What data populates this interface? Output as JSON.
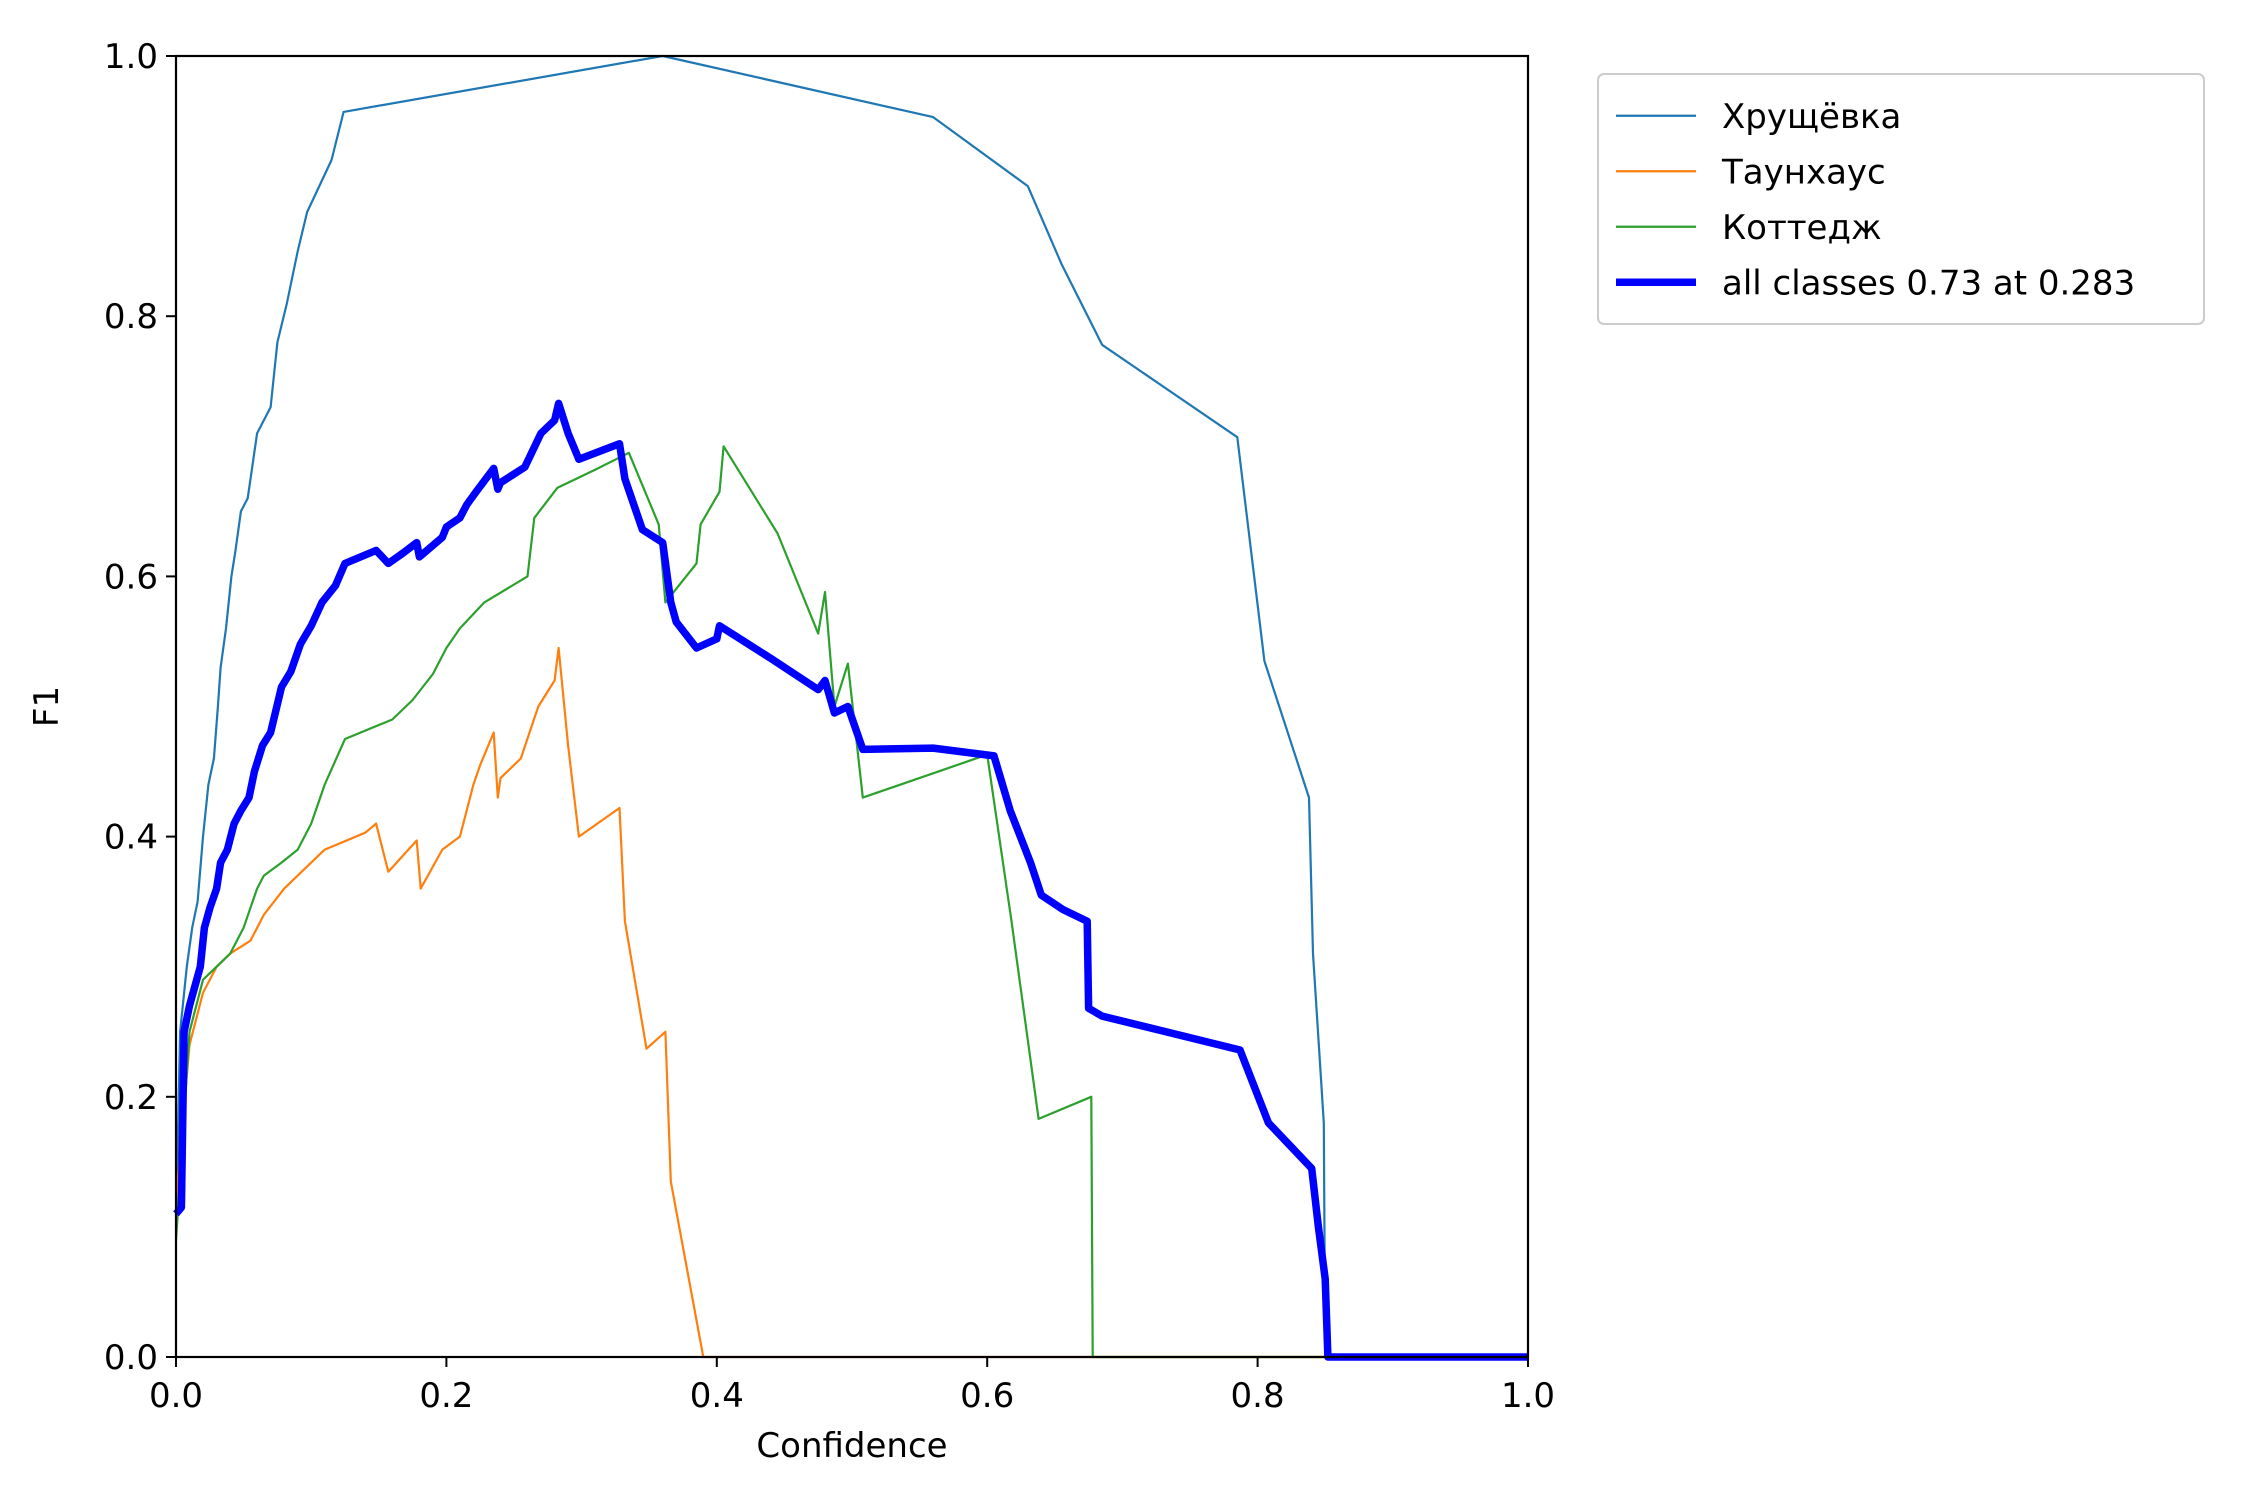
{
  "chart_data": {
    "type": "line",
    "title": "",
    "xlabel": "Confidence",
    "ylabel": "F1",
    "xlim": [
      0,
      1
    ],
    "ylim": [
      0,
      1
    ],
    "x_ticks": [
      "0.0",
      "0.2",
      "0.4",
      "0.6",
      "0.8",
      "1.0"
    ],
    "y_ticks": [
      "0.0",
      "0.2",
      "0.4",
      "0.6",
      "0.8",
      "1.0"
    ],
    "grid": false,
    "legend_position": "outside-top-right",
    "series": [
      {
        "name": "Хрущёвка",
        "color": "#1f77b4",
        "emphasis": false,
        "points": [
          [
            0.0,
            0.1
          ],
          [
            0.003,
            0.25
          ],
          [
            0.008,
            0.3
          ],
          [
            0.012,
            0.33
          ],
          [
            0.016,
            0.35
          ],
          [
            0.02,
            0.4
          ],
          [
            0.024,
            0.44
          ],
          [
            0.028,
            0.46
          ],
          [
            0.031,
            0.5
          ],
          [
            0.033,
            0.53
          ],
          [
            0.037,
            0.56
          ],
          [
            0.041,
            0.6
          ],
          [
            0.044,
            0.62
          ],
          [
            0.048,
            0.65
          ],
          [
            0.053,
            0.66
          ],
          [
            0.06,
            0.71
          ],
          [
            0.07,
            0.73
          ],
          [
            0.075,
            0.78
          ],
          [
            0.082,
            0.81
          ],
          [
            0.09,
            0.85
          ],
          [
            0.097,
            0.88
          ],
          [
            0.115,
            0.92
          ],
          [
            0.124,
            0.957
          ],
          [
            0.36,
            1.0
          ],
          [
            0.56,
            0.953
          ],
          [
            0.63,
            0.9
          ],
          [
            0.655,
            0.84
          ],
          [
            0.685,
            0.778
          ],
          [
            0.785,
            0.707
          ],
          [
            0.805,
            0.535
          ],
          [
            0.838,
            0.43
          ],
          [
            0.841,
            0.31
          ],
          [
            0.849,
            0.18
          ],
          [
            0.85,
            0.0
          ],
          [
            1.0,
            0.0
          ]
        ]
      },
      {
        "name": "Таунхаус",
        "color": "#ff7f0e",
        "emphasis": false,
        "points": [
          [
            0.0,
            0.12
          ],
          [
            0.01,
            0.24
          ],
          [
            0.02,
            0.28
          ],
          [
            0.03,
            0.3
          ],
          [
            0.04,
            0.31
          ],
          [
            0.055,
            0.32
          ],
          [
            0.065,
            0.34
          ],
          [
            0.08,
            0.36
          ],
          [
            0.09,
            0.37
          ],
          [
            0.1,
            0.38
          ],
          [
            0.11,
            0.39
          ],
          [
            0.14,
            0.403
          ],
          [
            0.148,
            0.41
          ],
          [
            0.157,
            0.373
          ],
          [
            0.178,
            0.397
          ],
          [
            0.181,
            0.36
          ],
          [
            0.197,
            0.39
          ],
          [
            0.21,
            0.4
          ],
          [
            0.22,
            0.44
          ],
          [
            0.225,
            0.455
          ],
          [
            0.235,
            0.48
          ],
          [
            0.238,
            0.43
          ],
          [
            0.24,
            0.445
          ],
          [
            0.255,
            0.46
          ],
          [
            0.268,
            0.5
          ],
          [
            0.28,
            0.52
          ],
          [
            0.283,
            0.545
          ],
          [
            0.29,
            0.47
          ],
          [
            0.298,
            0.4
          ],
          [
            0.328,
            0.422
          ],
          [
            0.332,
            0.335
          ],
          [
            0.348,
            0.237
          ],
          [
            0.362,
            0.25
          ],
          [
            0.366,
            0.135
          ],
          [
            0.39,
            0.0
          ],
          [
            1.0,
            0.0
          ]
        ]
      },
      {
        "name": "Коттедж",
        "color": "#2ca02c",
        "emphasis": false,
        "points": [
          [
            0.0,
            0.09
          ],
          [
            0.01,
            0.25
          ],
          [
            0.02,
            0.29
          ],
          [
            0.03,
            0.3
          ],
          [
            0.04,
            0.31
          ],
          [
            0.05,
            0.33
          ],
          [
            0.06,
            0.36
          ],
          [
            0.065,
            0.37
          ],
          [
            0.078,
            0.38
          ],
          [
            0.09,
            0.39
          ],
          [
            0.1,
            0.41
          ],
          [
            0.11,
            0.44
          ],
          [
            0.125,
            0.475
          ],
          [
            0.16,
            0.49
          ],
          [
            0.175,
            0.505
          ],
          [
            0.19,
            0.525
          ],
          [
            0.2,
            0.545
          ],
          [
            0.21,
            0.56
          ],
          [
            0.228,
            0.58
          ],
          [
            0.26,
            0.6
          ],
          [
            0.265,
            0.645
          ],
          [
            0.282,
            0.668
          ],
          [
            0.31,
            0.682
          ],
          [
            0.335,
            0.695
          ],
          [
            0.357,
            0.64
          ],
          [
            0.362,
            0.58
          ],
          [
            0.385,
            0.61
          ],
          [
            0.388,
            0.64
          ],
          [
            0.402,
            0.665
          ],
          [
            0.405,
            0.7
          ],
          [
            0.445,
            0.633
          ],
          [
            0.475,
            0.556
          ],
          [
            0.48,
            0.588
          ],
          [
            0.487,
            0.5
          ],
          [
            0.497,
            0.533
          ],
          [
            0.508,
            0.43
          ],
          [
            0.6,
            0.463
          ],
          [
            0.618,
            0.335
          ],
          [
            0.638,
            0.183
          ],
          [
            0.677,
            0.2
          ],
          [
            0.678,
            0.0
          ],
          [
            1.0,
            0.0
          ]
        ]
      },
      {
        "name": "all classes 0.73 at 0.283",
        "color": "#0000ff",
        "emphasis": true,
        "points": [
          [
            0.0,
            0.11
          ],
          [
            0.004,
            0.115
          ],
          [
            0.006,
            0.25
          ],
          [
            0.01,
            0.27
          ],
          [
            0.014,
            0.285
          ],
          [
            0.018,
            0.3
          ],
          [
            0.021,
            0.33
          ],
          [
            0.025,
            0.345
          ],
          [
            0.03,
            0.36
          ],
          [
            0.033,
            0.38
          ],
          [
            0.038,
            0.39
          ],
          [
            0.043,
            0.41
          ],
          [
            0.048,
            0.42
          ],
          [
            0.054,
            0.43
          ],
          [
            0.058,
            0.45
          ],
          [
            0.064,
            0.47
          ],
          [
            0.07,
            0.48
          ],
          [
            0.078,
            0.515
          ],
          [
            0.085,
            0.527
          ],
          [
            0.092,
            0.548
          ],
          [
            0.1,
            0.562
          ],
          [
            0.108,
            0.58
          ],
          [
            0.118,
            0.593
          ],
          [
            0.125,
            0.61
          ],
          [
            0.148,
            0.62
          ],
          [
            0.157,
            0.61
          ],
          [
            0.168,
            0.618
          ],
          [
            0.178,
            0.626
          ],
          [
            0.18,
            0.615
          ],
          [
            0.197,
            0.63
          ],
          [
            0.2,
            0.638
          ],
          [
            0.21,
            0.645
          ],
          [
            0.215,
            0.655
          ],
          [
            0.222,
            0.665
          ],
          [
            0.235,
            0.683
          ],
          [
            0.238,
            0.667
          ],
          [
            0.24,
            0.672
          ],
          [
            0.258,
            0.684
          ],
          [
            0.27,
            0.71
          ],
          [
            0.28,
            0.72
          ],
          [
            0.283,
            0.733
          ],
          [
            0.29,
            0.71
          ],
          [
            0.298,
            0.69
          ],
          [
            0.328,
            0.702
          ],
          [
            0.332,
            0.675
          ],
          [
            0.345,
            0.636
          ],
          [
            0.36,
            0.626
          ],
          [
            0.366,
            0.58
          ],
          [
            0.37,
            0.565
          ],
          [
            0.385,
            0.545
          ],
          [
            0.4,
            0.552
          ],
          [
            0.402,
            0.562
          ],
          [
            0.44,
            0.537
          ],
          [
            0.475,
            0.513
          ],
          [
            0.48,
            0.52
          ],
          [
            0.487,
            0.495
          ],
          [
            0.497,
            0.5
          ],
          [
            0.508,
            0.467
          ],
          [
            0.56,
            0.468
          ],
          [
            0.605,
            0.462
          ],
          [
            0.617,
            0.42
          ],
          [
            0.632,
            0.38
          ],
          [
            0.64,
            0.355
          ],
          [
            0.656,
            0.344
          ],
          [
            0.674,
            0.335
          ],
          [
            0.675,
            0.268
          ],
          [
            0.685,
            0.262
          ],
          [
            0.787,
            0.236
          ],
          [
            0.808,
            0.18
          ],
          [
            0.84,
            0.145
          ],
          [
            0.845,
            0.1
          ],
          [
            0.85,
            0.06
          ],
          [
            0.852,
            0.0
          ],
          [
            1.0,
            0.0
          ]
        ]
      }
    ]
  }
}
